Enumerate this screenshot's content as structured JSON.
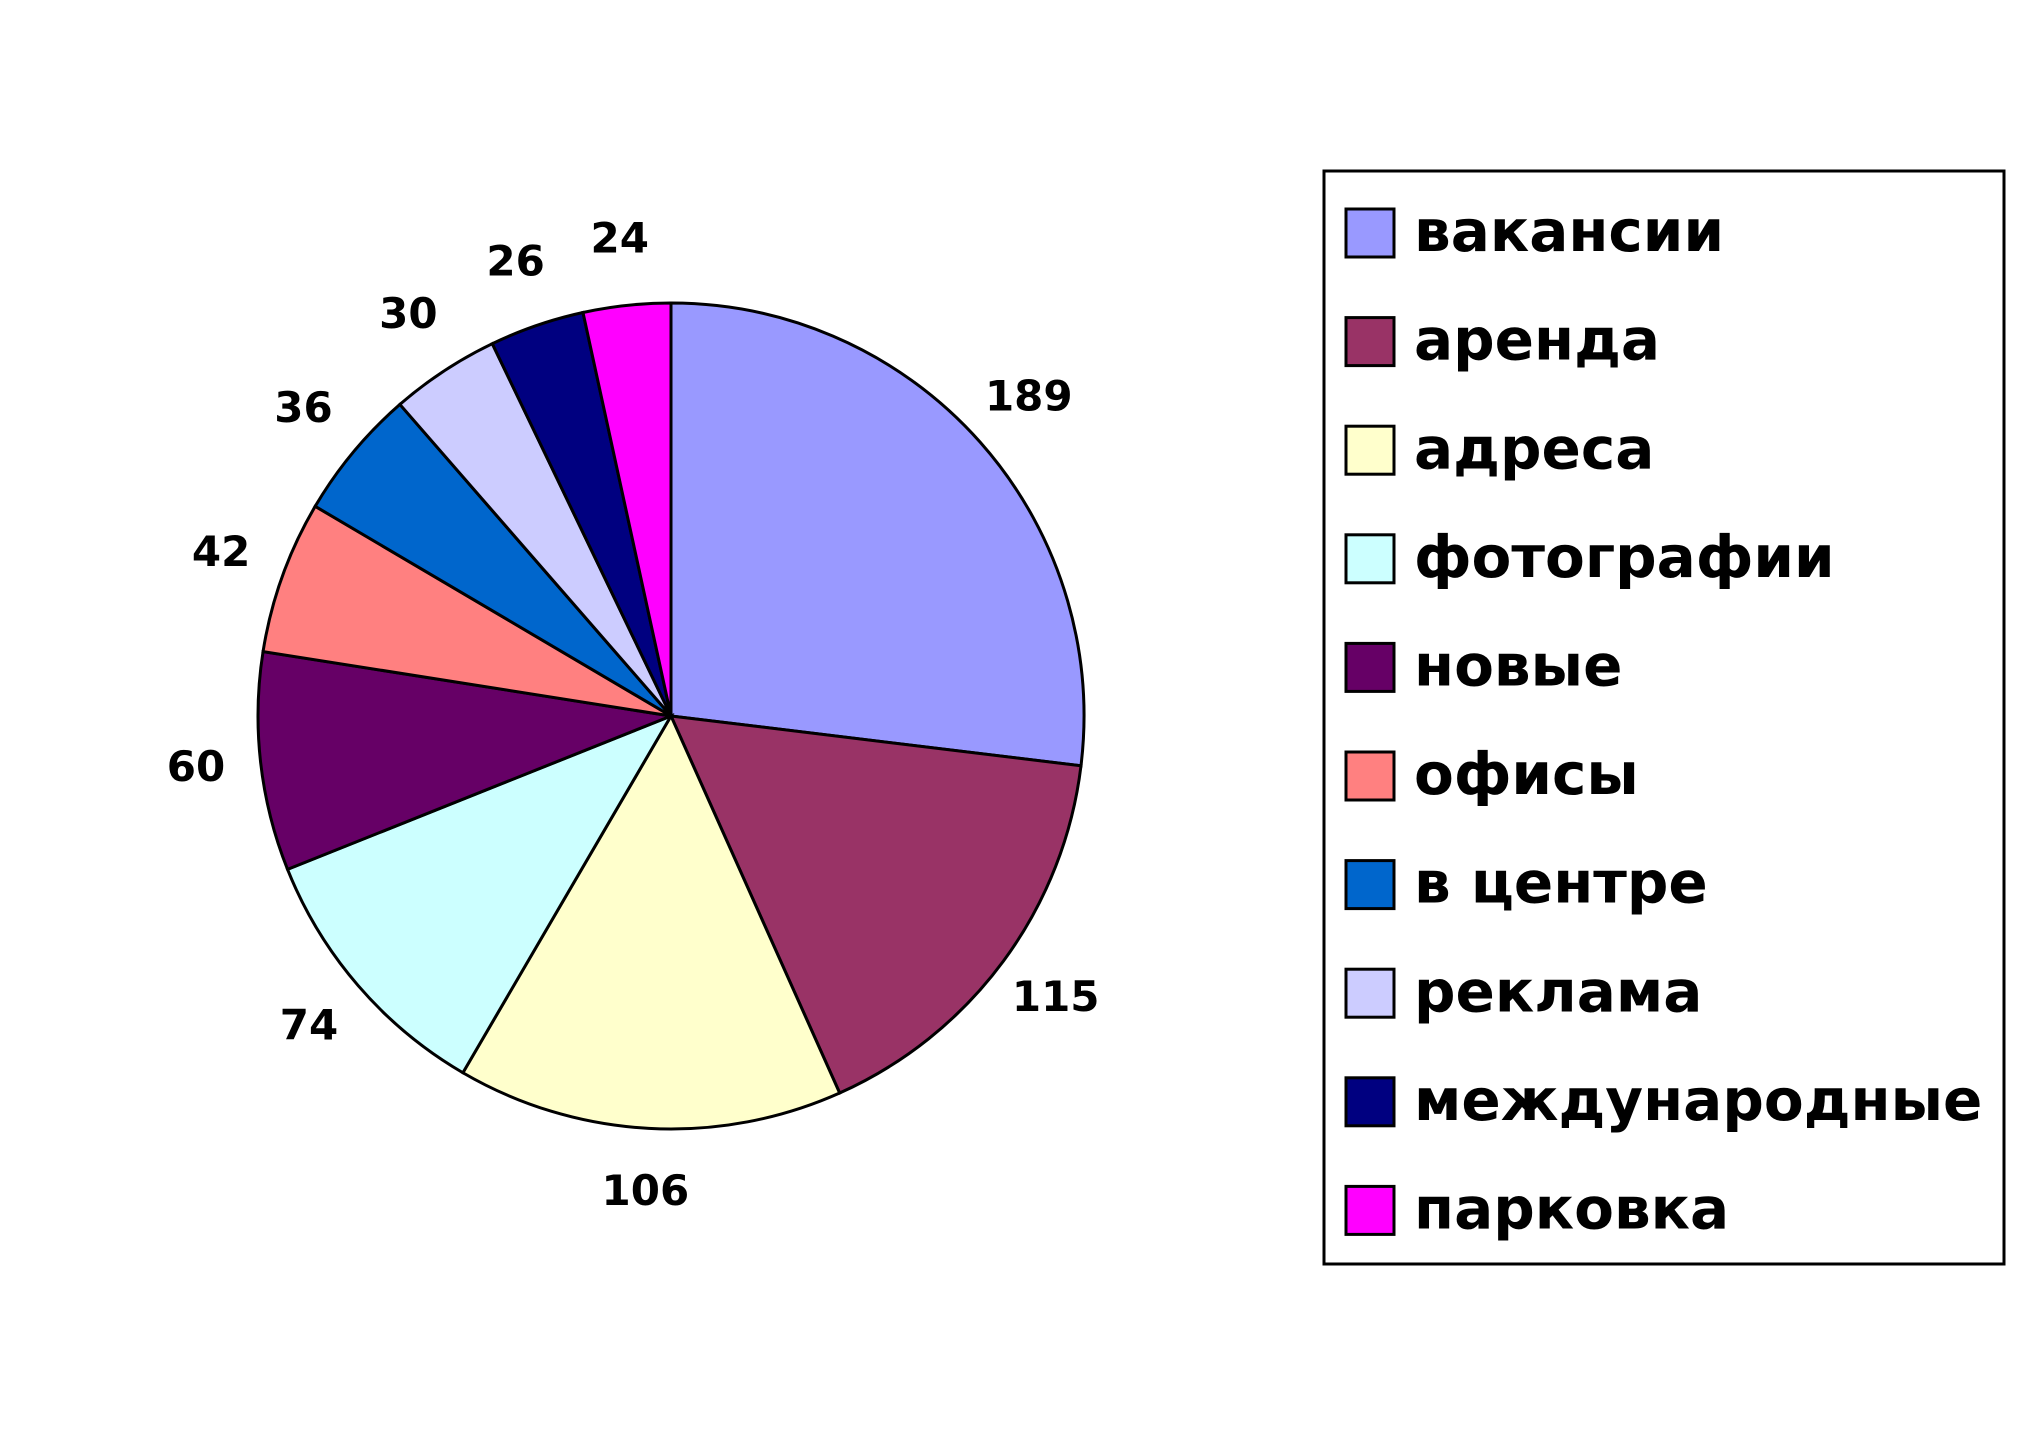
{
  "chart_data": {
    "type": "pie",
    "categories": [
      "вакансии",
      "аренда",
      "адреса",
      "фотографии",
      "новые",
      "офисы",
      "в центре",
      "реклама",
      "международные",
      "парковка"
    ],
    "values": [
      189,
      115,
      106,
      74,
      60,
      42,
      36,
      30,
      26,
      24
    ],
    "colors": [
      "#9999ff",
      "#993366",
      "#ffffcc",
      "#ccffff",
      "#660066",
      "#ff8080",
      "#0066cc",
      "#ccccff",
      "#000080",
      "#ff00ff"
    ],
    "legend": "right"
  }
}
